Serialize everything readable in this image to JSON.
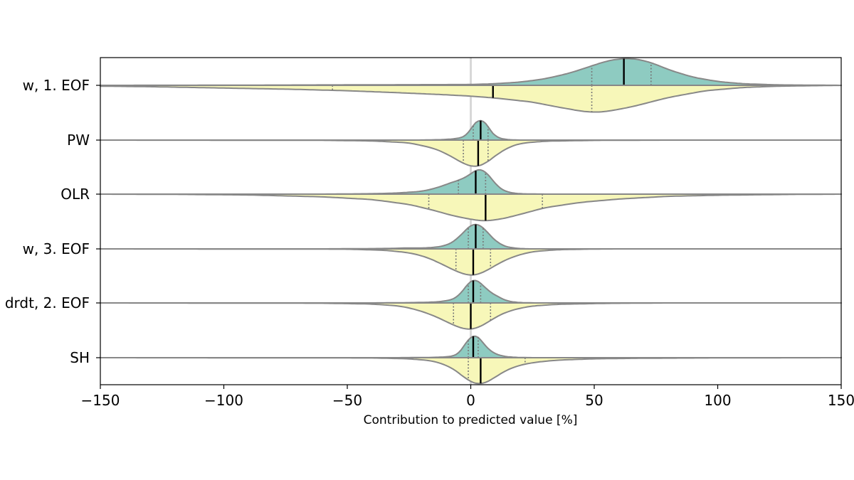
{
  "chart_data": {
    "type": "split-violin",
    "xlabel": "Contribution to predicted value [%]",
    "xlim": [
      -150,
      150
    ],
    "xticks": [
      -150,
      -100,
      -50,
      0,
      50,
      100,
      150
    ],
    "xtick_labels": [
      "−150",
      "−100",
      "−50",
      "0",
      "50",
      "100",
      "150"
    ],
    "zero_line": 0,
    "colors": {
      "upper_fill": "#8ecbc1",
      "lower_fill": "#f7f7b9",
      "outline": "#888888",
      "median": "#000000",
      "quartile": "#777777",
      "zero_line": "#d8d8d8"
    },
    "categories": [
      {
        "label": "w, 1. EOF",
        "upper": {
          "median": 62,
          "q1": 49,
          "q3": 73,
          "density": [
            [
              -150,
              0
            ],
            [
              -100,
              0.005
            ],
            [
              0,
              0.03
            ],
            [
              10,
              0.06
            ],
            [
              20,
              0.12
            ],
            [
              30,
              0.24
            ],
            [
              40,
              0.45
            ],
            [
              50,
              0.75
            ],
            [
              55,
              0.9
            ],
            [
              60,
              0.98
            ],
            [
              65,
              1.0
            ],
            [
              70,
              0.92
            ],
            [
              75,
              0.78
            ],
            [
              80,
              0.58
            ],
            [
              90,
              0.3
            ],
            [
              100,
              0.14
            ],
            [
              110,
              0.06
            ],
            [
              125,
              0.015
            ],
            [
              150,
              0
            ]
          ]
        },
        "lower": {
          "median": 9,
          "q1": -56,
          "q3": 49,
          "density": [
            [
              -150,
              0.03
            ],
            [
              -130,
              0.05
            ],
            [
              -100,
              0.1
            ],
            [
              -70,
              0.15
            ],
            [
              -50,
              0.2
            ],
            [
              -30,
              0.27
            ],
            [
              -10,
              0.35
            ],
            [
              0,
              0.4
            ],
            [
              10,
              0.47
            ],
            [
              25,
              0.62
            ],
            [
              35,
              0.8
            ],
            [
              45,
              0.96
            ],
            [
              50,
              1.0
            ],
            [
              55,
              0.97
            ],
            [
              65,
              0.8
            ],
            [
              80,
              0.45
            ],
            [
              95,
              0.2
            ],
            [
              110,
              0.08
            ],
            [
              125,
              0.03
            ],
            [
              150,
              0
            ]
          ]
        }
      },
      {
        "label": "PW",
        "upper": {
          "median": 4,
          "q1": 1,
          "q3": 7,
          "density": [
            [
              -20,
              0
            ],
            [
              -10,
              0.02
            ],
            [
              -5,
              0.06
            ],
            [
              -2,
              0.12
            ],
            [
              0,
              0.3
            ],
            [
              2,
              0.7
            ],
            [
              3,
              0.93
            ],
            [
              4,
              1.0
            ],
            [
              5,
              0.88
            ],
            [
              6,
              0.6
            ],
            [
              8,
              0.28
            ],
            [
              10,
              0.1
            ],
            [
              13,
              0.03
            ],
            [
              18,
              0
            ]
          ]
        },
        "lower": {
          "median": 3,
          "q1": -3,
          "q3": 7,
          "density": [
            [
              -150,
              0
            ],
            [
              -60,
              0.008
            ],
            [
              -40,
              0.03
            ],
            [
              -25,
              0.1
            ],
            [
              -15,
              0.3
            ],
            [
              -10,
              0.5
            ],
            [
              -6,
              0.7
            ],
            [
              -3,
              0.88
            ],
            [
              0,
              0.97
            ],
            [
              2,
              1.0
            ],
            [
              5,
              0.93
            ],
            [
              8,
              0.72
            ],
            [
              12,
              0.44
            ],
            [
              16,
              0.24
            ],
            [
              20,
              0.12
            ],
            [
              30,
              0.04
            ],
            [
              50,
              0.01
            ],
            [
              80,
              0
            ],
            [
              150,
              0
            ]
          ]
        }
      },
      {
        "label": "OLR",
        "upper": {
          "median": 2,
          "q1": -5,
          "q3": 6,
          "density": [
            [
              -150,
              0
            ],
            [
              -60,
              0
            ],
            [
              -40,
              0.015
            ],
            [
              -30,
              0.04
            ],
            [
              -20,
              0.1
            ],
            [
              -15,
              0.2
            ],
            [
              -10,
              0.35
            ],
            [
              -6,
              0.5
            ],
            [
              -3,
              0.55
            ],
            [
              0,
              0.75
            ],
            [
              2,
              0.9
            ],
            [
              4,
              1.0
            ],
            [
              6,
              0.9
            ],
            [
              8,
              0.6
            ],
            [
              10,
              0.35
            ],
            [
              12,
              0.18
            ],
            [
              15,
              0.06
            ],
            [
              20,
              0.01
            ],
            [
              30,
              0
            ]
          ]
        },
        "lower": {
          "median": 6,
          "q1": -17,
          "q3": 29,
          "density": [
            [
              -150,
              0
            ],
            [
              -120,
              0.008
            ],
            [
              -90,
              0.03
            ],
            [
              -60,
              0.1
            ],
            [
              -40,
              0.2
            ],
            [
              -25,
              0.38
            ],
            [
              -15,
              0.6
            ],
            [
              -8,
              0.78
            ],
            [
              -2,
              0.9
            ],
            [
              5,
              1.0
            ],
            [
              12,
              0.93
            ],
            [
              20,
              0.75
            ],
            [
              30,
              0.5
            ],
            [
              45,
              0.3
            ],
            [
              60,
              0.18
            ],
            [
              80,
              0.08
            ],
            [
              100,
              0.04
            ],
            [
              130,
              0.01
            ],
            [
              150,
              0
            ]
          ]
        }
      },
      {
        "label": "w, 3. EOF",
        "upper": {
          "median": 2,
          "q1": -1,
          "q3": 5,
          "density": [
            [
              -60,
              0
            ],
            [
              -40,
              0.01
            ],
            [
              -30,
              0.02
            ],
            [
              -25,
              0.04
            ],
            [
              -20,
              0.03
            ],
            [
              -15,
              0.05
            ],
            [
              -10,
              0.12
            ],
            [
              -6,
              0.3
            ],
            [
              -3,
              0.62
            ],
            [
              0,
              0.9
            ],
            [
              2,
              1.0
            ],
            [
              4,
              0.92
            ],
            [
              6,
              0.68
            ],
            [
              9,
              0.38
            ],
            [
              12,
              0.14
            ],
            [
              16,
              0.04
            ],
            [
              22,
              0
            ]
          ]
        },
        "lower": {
          "median": 1,
          "q1": -6,
          "q3": 8,
          "density": [
            [
              -150,
              0
            ],
            [
              -50,
              0.01
            ],
            [
              -35,
              0.05
            ],
            [
              -25,
              0.14
            ],
            [
              -18,
              0.3
            ],
            [
              -12,
              0.55
            ],
            [
              -7,
              0.78
            ],
            [
              -3,
              0.93
            ],
            [
              0,
              1.0
            ],
            [
              3,
              0.95
            ],
            [
              7,
              0.78
            ],
            [
              12,
              0.5
            ],
            [
              18,
              0.26
            ],
            [
              25,
              0.1
            ],
            [
              35,
              0.03
            ],
            [
              50,
              0.005
            ],
            [
              60,
              0
            ]
          ]
        }
      },
      {
        "label": "drdt, 2. EOF",
        "upper": {
          "median": 1,
          "q1": -1,
          "q3": 4,
          "density": [
            [
              -40,
              0
            ],
            [
              -25,
              0.01
            ],
            [
              -15,
              0.03
            ],
            [
              -10,
              0.07
            ],
            [
              -6,
              0.16
            ],
            [
              -4,
              0.3
            ],
            [
              -2,
              0.6
            ],
            [
              0,
              0.9
            ],
            [
              1,
              1.0
            ],
            [
              3,
              0.88
            ],
            [
              5,
              0.6
            ],
            [
              7,
              0.42
            ],
            [
              9,
              0.38
            ],
            [
              11,
              0.22
            ],
            [
              14,
              0.08
            ],
            [
              18,
              0.02
            ],
            [
              25,
              0
            ]
          ]
        },
        "lower": {
          "median": 0,
          "q1": -7,
          "q3": 8,
          "density": [
            [
              -150,
              0
            ],
            [
              -60,
              0.01
            ],
            [
              -40,
              0.04
            ],
            [
              -28,
              0.12
            ],
            [
              -20,
              0.3
            ],
            [
              -13,
              0.55
            ],
            [
              -8,
              0.78
            ],
            [
              -4,
              0.93
            ],
            [
              -1,
              1.0
            ],
            [
              2,
              0.95
            ],
            [
              6,
              0.78
            ],
            [
              10,
              0.52
            ],
            [
              16,
              0.28
            ],
            [
              24,
              0.12
            ],
            [
              35,
              0.05
            ],
            [
              55,
              0.015
            ],
            [
              80,
              0
            ],
            [
              150,
              0
            ]
          ]
        }
      },
      {
        "label": "SH",
        "upper": {
          "median": 1,
          "q1": -1,
          "q3": 3,
          "density": [
            [
              -30,
              0
            ],
            [
              -15,
              0.01
            ],
            [
              -8,
              0.04
            ],
            [
              -5,
              0.1
            ],
            [
              -3,
              0.3
            ],
            [
              -1,
              0.7
            ],
            [
              0,
              0.95
            ],
            [
              1,
              1.0
            ],
            [
              3,
              0.82
            ],
            [
              5,
              0.5
            ],
            [
              8,
              0.22
            ],
            [
              12,
              0.06
            ],
            [
              18,
              0.01
            ],
            [
              25,
              0
            ]
          ]
        },
        "lower": {
          "median": 4,
          "q1": -1,
          "q3": 22,
          "density": [
            [
              -150,
              0
            ],
            [
              -40,
              0.01
            ],
            [
              -25,
              0.04
            ],
            [
              -15,
              0.12
            ],
            [
              -8,
              0.35
            ],
            [
              -4,
              0.62
            ],
            [
              -1,
              0.86
            ],
            [
              2,
              0.97
            ],
            [
              4,
              1.0
            ],
            [
              8,
              0.85
            ],
            [
              12,
              0.58
            ],
            [
              18,
              0.32
            ],
            [
              25,
              0.18
            ],
            [
              35,
              0.09
            ],
            [
              50,
              0.04
            ],
            [
              70,
              0.02
            ],
            [
              100,
              0.008
            ],
            [
              150,
              0
            ]
          ]
        }
      }
    ]
  }
}
